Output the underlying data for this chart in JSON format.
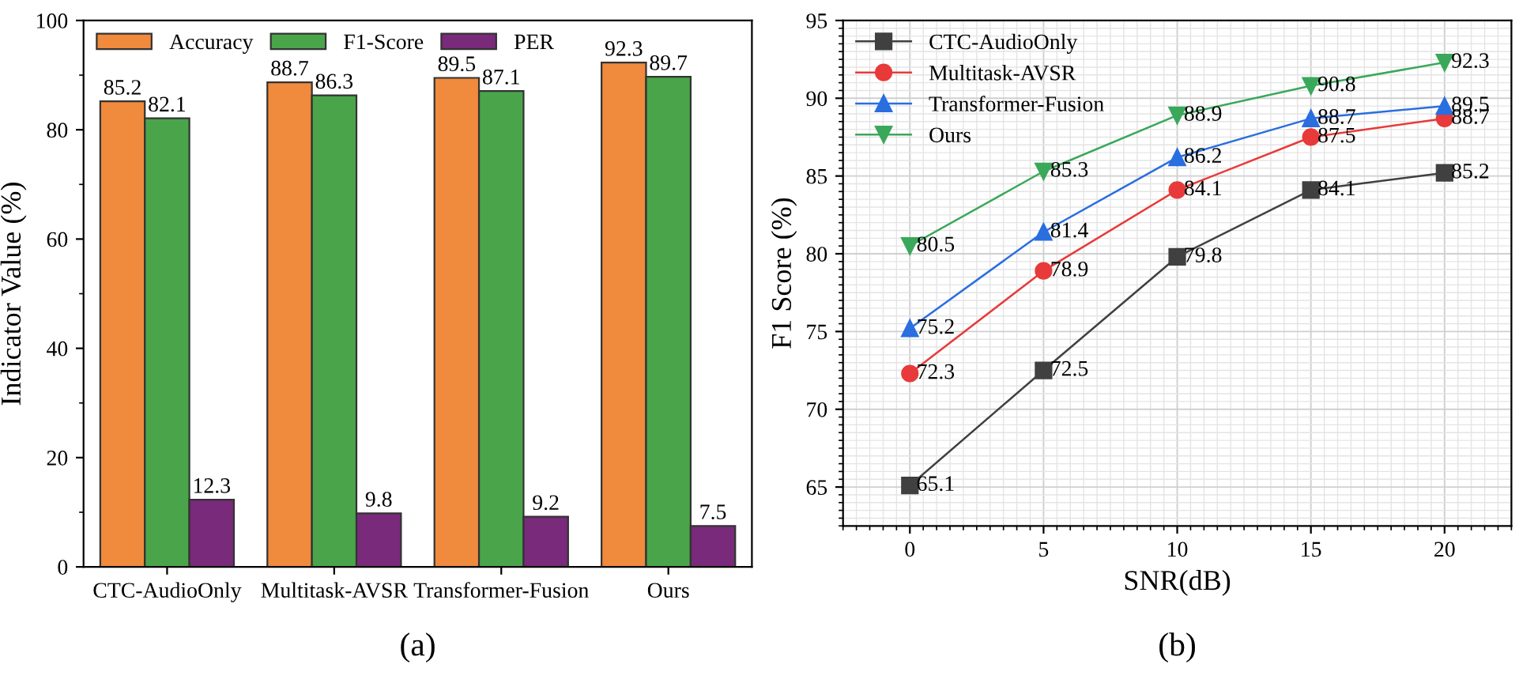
{
  "chart_data": [
    {
      "type": "bar",
      "ylabel": "Indicator Value (%)",
      "categories": [
        "CTC-AudioOnly",
        "Multitask-AVSR",
        "Transformer-Fusion",
        "Ours"
      ],
      "series": [
        {
          "name": "Accuracy",
          "color": "#f08a3c",
          "values": [
            85.2,
            88.7,
            89.5,
            92.3
          ]
        },
        {
          "name": "F1-Score",
          "color": "#4aa54a",
          "values": [
            82.1,
            86.3,
            87.1,
            89.7
          ]
        },
        {
          "name": "PER",
          "color": "#7a2a7a",
          "values": [
            12.3,
            9.8,
            9.2,
            7.5
          ]
        }
      ],
      "ylim": [
        0,
        100
      ],
      "yticks": [
        0,
        20,
        40,
        60,
        80,
        100
      ],
      "data_labels": true,
      "legend": "top left",
      "grid": false,
      "annotations": [
        "(a)"
      ]
    },
    {
      "type": "line",
      "xlabel": "SNR(dB)",
      "ylabel": "F1 Score (%)",
      "x": [
        0,
        5,
        10,
        15,
        20
      ],
      "series": [
        {
          "name": "CTC-AudioOnly",
          "color": "#404040",
          "marker": "square",
          "values": [
            65.1,
            72.5,
            79.8,
            84.1,
            85.2
          ]
        },
        {
          "name": "Multitask-AVSR",
          "color": "#e83a3a",
          "marker": "circle",
          "values": [
            72.3,
            78.9,
            84.1,
            87.5,
            88.7
          ]
        },
        {
          "name": "Transformer-Fusion",
          "color": "#2a6ee0",
          "marker": "triangle",
          "values": [
            75.2,
            81.4,
            86.2,
            88.7,
            89.5
          ]
        },
        {
          "name": "Ours",
          "color": "#3aa85a",
          "marker": "triangle_down",
          "values": [
            80.5,
            85.3,
            88.9,
            90.8,
            92.3
          ]
        }
      ],
      "xlim": [
        -2.5,
        22.5
      ],
      "xticks": [
        0,
        5,
        10,
        15,
        20
      ],
      "ylim": [
        62.5,
        95
      ],
      "yticks": [
        65,
        70,
        75,
        80,
        85,
        90,
        95
      ],
      "data_labels": true,
      "legend": "top left",
      "grid": true,
      "line_style": "solid",
      "annotations": [
        "(b)"
      ]
    }
  ]
}
